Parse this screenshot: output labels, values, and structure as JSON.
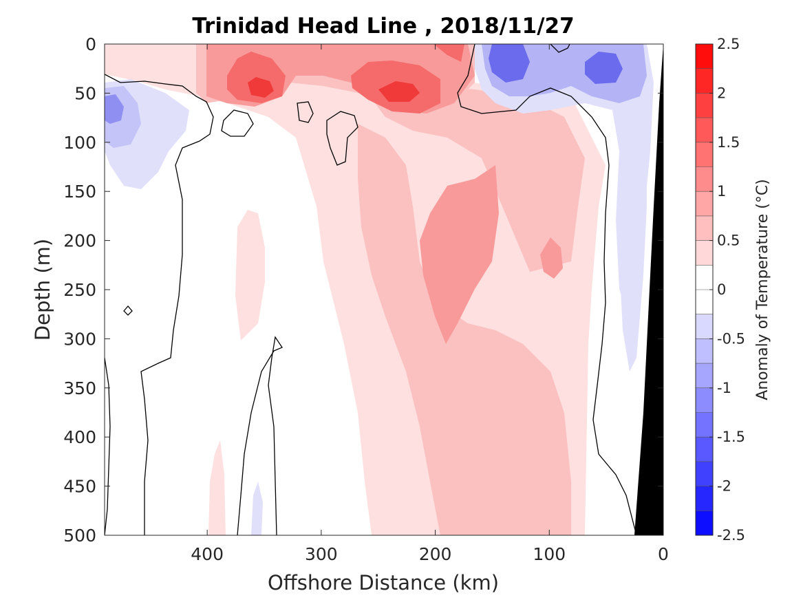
{
  "chart_data": {
    "type": "heatmap",
    "title": "Trinidad Head Line , 2018/11/27",
    "xlabel": "Offshore Distance (km)",
    "ylabel": "Depth (m)",
    "xlim": [
      490,
      0
    ],
    "ylim": [
      500,
      0
    ],
    "x_reversed": true,
    "y_reversed": true,
    "x_ticks": [
      400,
      300,
      200,
      100,
      0
    ],
    "x_tick_labels": [
      "400",
      "300",
      "200",
      "100",
      "0"
    ],
    "y_ticks": [
      0,
      50,
      100,
      150,
      200,
      250,
      300,
      350,
      400,
      450,
      500
    ],
    "y_tick_labels": [
      "0",
      "50",
      "100",
      "150",
      "200",
      "250",
      "300",
      "350",
      "400",
      "450",
      "500"
    ],
    "colorbar": {
      "label": "Anomaly of Temperature (°C)",
      "range": [
        -2.5,
        2.5
      ],
      "step": 0.25,
      "ticks": [
        2.5,
        2,
        1.5,
        1,
        0.5,
        0,
        -0.5,
        -1,
        -1.5,
        -2,
        -2.5
      ],
      "tick_labels": [
        "2.5",
        "2",
        "1.5",
        "1",
        "0.5",
        "0",
        "-0.5",
        "-1",
        "-1.5",
        "-2",
        "-2.5"
      ]
    },
    "contour_levels": [
      0
    ],
    "features": [
      {
        "name": "surface warm core near 350 km",
        "x": 352,
        "y": 45,
        "value": 2.0
      },
      {
        "name": "surface warm core near 235 km",
        "x": 235,
        "y": 48,
        "value": 1.8
      },
      {
        "name": "warm tongue",
        "x": 190,
        "y": 220,
        "value": 1.0
      },
      {
        "name": "cool core offshore edge",
        "x": 485,
        "y": 65,
        "value": -1.3
      },
      {
        "name": "cool core near 140 km",
        "x": 140,
        "y": 20,
        "value": -1.3
      },
      {
        "name": "cool core near 50 km",
        "x": 50,
        "y": 30,
        "value": -1.3
      }
    ],
    "grid": false,
    "bathymetry_color": "#000000"
  }
}
